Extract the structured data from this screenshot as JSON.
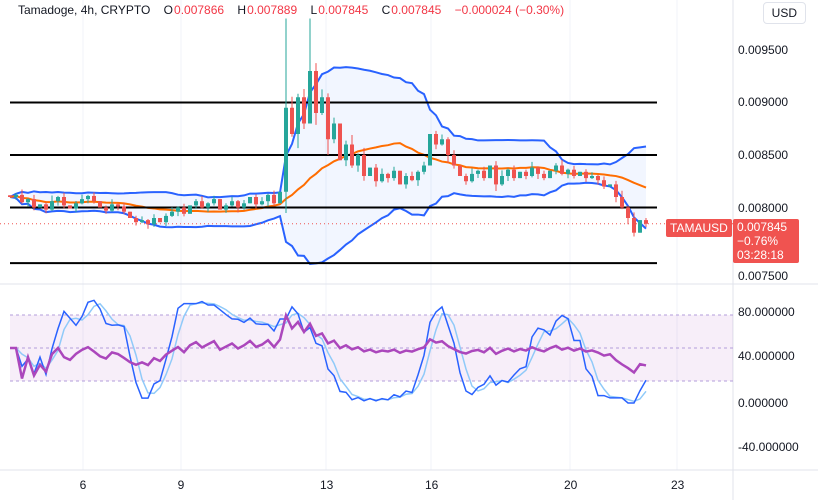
{
  "header": {
    "symbol": "Tamadoge",
    "interval": "4h",
    "exchange": "CRYPTO",
    "open_label": "O",
    "open": "0.007866",
    "high_label": "H",
    "high": "0.007889",
    "low_label": "L",
    "low": "0.007845",
    "close_label": "C",
    "close": "0.007845",
    "change": "−0.000024 (−0.30%)"
  },
  "currency": "USD",
  "price_tag": {
    "symbol": "TAMAUSD",
    "price": "0.007845",
    "change_pct": "−0.76%",
    "countdown": "03:28:18"
  },
  "price_axis": [
    "0.009500",
    "0.009000",
    "0.008500",
    "0.008000",
    "0.007500"
  ],
  "osc_axis": [
    "80.000000",
    "40.000000",
    "0.000000",
    "-40.000000"
  ],
  "time_axis": [
    "6",
    "9",
    "13",
    "16",
    "20",
    "23"
  ],
  "colors": {
    "up": "#26a69a",
    "down": "#ef5350",
    "bb": "#2962ff",
    "basis": "#ff6d00",
    "rsi": "#ab47bc",
    "stoch_k": "#2962ff",
    "stoch_d": "#90caf9"
  },
  "chart_data": {
    "type": "candlestick",
    "price_range": [
      0.00745,
      0.0098
    ],
    "horizontal_levels": [
      0.009,
      0.0085,
      0.008,
      0.00747
    ],
    "closes": [
      0.0081,
      0.00812,
      0.00805,
      0.00808,
      0.008,
      0.00803,
      0.00798,
      0.00806,
      0.0081,
      0.00802,
      0.00799,
      0.00804,
      0.00808,
      0.00811,
      0.00806,
      0.008,
      0.00797,
      0.00803,
      0.00801,
      0.00796,
      0.0079,
      0.00786,
      0.00788,
      0.00784,
      0.0079,
      0.00786,
      0.00792,
      0.00796,
      0.008,
      0.00794,
      0.00802,
      0.00806,
      0.008,
      0.00804,
      0.00808,
      0.00798,
      0.00802,
      0.00806,
      0.008,
      0.00804,
      0.0081,
      0.00803,
      0.00806,
      0.00812,
      0.00804,
      0.00815,
      0.00895,
      0.0087,
      0.00905,
      0.0088,
      0.0093,
      0.0089,
      0.00905,
      0.00865,
      0.0088,
      0.00845,
      0.0086,
      0.0084,
      0.0085,
      0.0083,
      0.00838,
      0.00825,
      0.00832,
      0.00828,
      0.00835,
      0.00822,
      0.0083,
      0.00826,
      0.00834,
      0.0084,
      0.0087,
      0.0086,
      0.00865,
      0.0085,
      0.0084,
      0.0083,
      0.00825,
      0.00832,
      0.00835,
      0.00828,
      0.0084,
      0.00822,
      0.0083,
      0.00836,
      0.00828,
      0.00834,
      0.0083,
      0.00838,
      0.00832,
      0.00828,
      0.00835,
      0.0084,
      0.00832,
      0.00836,
      0.0083,
      0.00834,
      0.00828,
      0.0083,
      0.00826,
      0.0082,
      0.00822,
      0.0081,
      0.008,
      0.0079,
      0.00776,
      0.00788,
      0.007845
    ],
    "notable_highs": {
      "46": 0.0098,
      "50": 0.0098
    },
    "indicators": [
      "Bollinger Bands (20)",
      "RSI (14)",
      "Stochastic RSI"
    ],
    "osc_range": [
      -50,
      100
    ],
    "osc_bands": [
      80,
      50,
      20
    ]
  }
}
